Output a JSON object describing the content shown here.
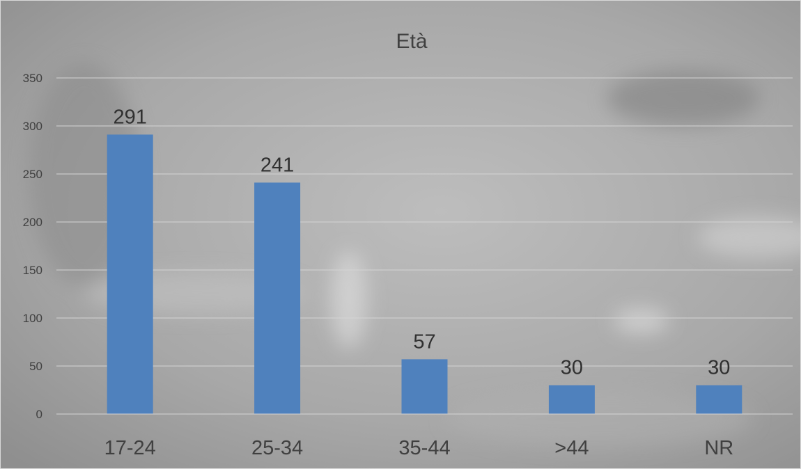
{
  "chart_data": {
    "type": "bar",
    "title": "Età",
    "xlabel": "",
    "ylabel": "",
    "categories": [
      "17-24",
      "25-34",
      "35-44",
      ">44",
      "NR"
    ],
    "values": [
      291,
      241,
      57,
      30,
      30
    ],
    "ylim": [
      0,
      350
    ],
    "yticks": [
      0,
      50,
      100,
      150,
      200,
      250,
      300,
      350
    ],
    "grid": true,
    "legend": "none",
    "bar_color": "#4f81bd",
    "background_color": "#9e9e9e"
  }
}
